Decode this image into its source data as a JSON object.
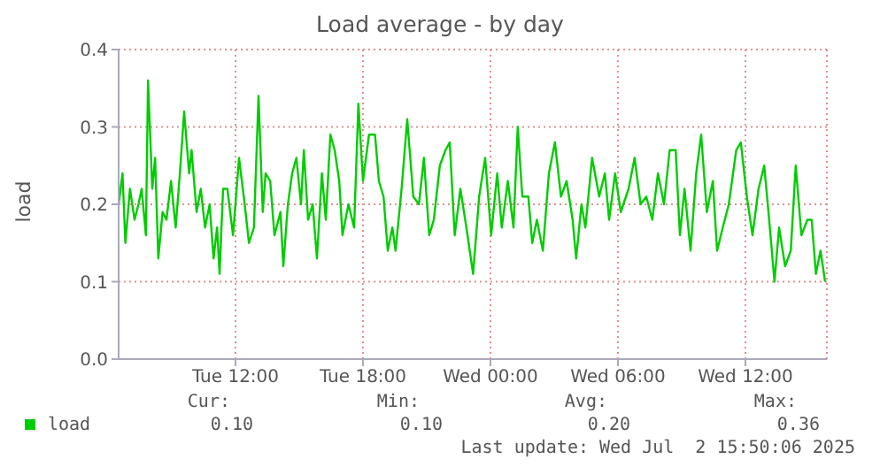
{
  "chart_data": {
    "type": "line",
    "title": "Load average - by day",
    "ylabel": "load",
    "xlim": [
      "2025-07-01T06:30",
      "2025-07-02T15:50"
    ],
    "xticks": [
      {
        "value": "2025-07-01T12:00",
        "label": "Tue 12:00"
      },
      {
        "value": "2025-07-01T18:00",
        "label": "Tue 18:00"
      },
      {
        "value": "2025-07-02T00:00",
        "label": "Wed 00:00"
      },
      {
        "value": "2025-07-02T06:00",
        "label": "Wed 06:00"
      },
      {
        "value": "2025-07-02T12:00",
        "label": "Wed 12:00"
      }
    ],
    "ylim": [
      0,
      0.4
    ],
    "yticks": [
      {
        "value": 0,
        "label": "0.0"
      },
      0.1,
      0.2,
      0.3,
      {
        "value": 0.4,
        "label": "0.4"
      }
    ],
    "grid": true,
    "legend": "bottom left",
    "marker": "none",
    "line_style": "solid",
    "x": [
      "2025-07-01T06:30",
      "2025-07-01T06:41",
      "2025-07-01T06:49",
      "2025-07-01T07:02",
      "2025-07-01T07:15",
      "2025-07-01T07:26",
      "2025-07-01T07:35",
      "2025-07-01T07:47",
      "2025-07-01T07:53",
      "2025-07-01T08:05",
      "2025-07-01T08:13",
      "2025-07-01T08:22",
      "2025-07-01T08:34",
      "2025-07-01T08:45",
      "2025-07-01T08:58",
      "2025-07-01T09:11",
      "2025-07-01T09:23",
      "2025-07-01T09:35",
      "2025-07-01T09:49",
      "2025-07-01T09:56",
      "2025-07-01T10:10",
      "2025-07-01T10:22",
      "2025-07-01T10:34",
      "2025-07-01T10:47",
      "2025-07-01T10:58",
      "2025-07-01T11:08",
      "2025-07-01T11:15",
      "2025-07-01T11:25",
      "2025-07-01T11:37",
      "2025-07-01T11:53",
      "2025-07-01T12:10",
      "2025-07-01T12:26",
      "2025-07-01T12:38",
      "2025-07-01T12:52",
      "2025-07-01T13:05",
      "2025-07-01T13:17",
      "2025-07-01T13:25",
      "2025-07-01T13:38",
      "2025-07-01T13:50",
      "2025-07-01T14:07",
      "2025-07-01T14:15",
      "2025-07-01T14:28",
      "2025-07-01T14:40",
      "2025-07-01T14:52",
      "2025-07-01T15:05",
      "2025-07-01T15:13",
      "2025-07-01T15:25",
      "2025-07-01T15:38",
      "2025-07-01T15:50",
      "2025-07-01T16:04",
      "2025-07-01T16:15",
      "2025-07-01T16:28",
      "2025-07-01T16:40",
      "2025-07-01T16:53",
      "2025-07-01T17:02",
      "2025-07-01T17:19",
      "2025-07-01T17:35",
      "2025-07-01T17:47",
      "2025-07-01T18:00",
      "2025-07-01T18:17",
      "2025-07-01T18:34",
      "2025-07-01T18:45",
      "2025-07-01T18:58",
      "2025-07-01T19:10",
      "2025-07-01T19:23",
      "2025-07-01T19:32",
      "2025-07-01T19:49",
      "2025-07-01T20:05",
      "2025-07-01T20:22",
      "2025-07-01T20:38",
      "2025-07-01T20:52",
      "2025-07-01T21:07",
      "2025-07-01T21:20",
      "2025-07-01T21:37",
      "2025-07-01T21:53",
      "2025-07-01T22:05",
      "2025-07-01T22:19",
      "2025-07-01T22:35",
      "2025-07-01T22:52",
      "2025-07-01T23:11",
      "2025-07-01T23:28",
      "2025-07-01T23:45",
      "2025-07-02T00:02",
      "2025-07-02T00:19",
      "2025-07-02T00:32",
      "2025-07-02T00:49",
      "2025-07-02T01:05",
      "2025-07-02T01:17",
      "2025-07-02T01:30",
      "2025-07-02T01:47",
      "2025-07-02T01:58",
      "2025-07-02T02:11",
      "2025-07-02T02:28",
      "2025-07-02T02:45",
      "2025-07-02T03:02",
      "2025-07-02T03:19",
      "2025-07-02T03:35",
      "2025-07-02T03:52",
      "2025-07-02T04:02",
      "2025-07-02T04:17",
      "2025-07-02T04:28",
      "2025-07-02T04:47",
      "2025-07-02T05:07",
      "2025-07-02T05:23",
      "2025-07-02T05:35",
      "2025-07-02T05:52",
      "2025-07-02T06:08",
      "2025-07-02T06:30",
      "2025-07-02T06:47",
      "2025-07-02T07:04",
      "2025-07-02T07:20",
      "2025-07-02T07:37",
      "2025-07-02T07:53",
      "2025-07-02T08:10",
      "2025-07-02T08:26",
      "2025-07-02T08:43",
      "2025-07-02T08:55",
      "2025-07-02T09:08",
      "2025-07-02T09:25",
      "2025-07-02T09:41",
      "2025-07-02T09:55",
      "2025-07-02T10:11",
      "2025-07-02T10:28",
      "2025-07-02T10:40",
      "2025-07-02T10:56",
      "2025-07-02T11:13",
      "2025-07-02T11:34",
      "2025-07-02T11:47",
      "2025-07-02T12:04",
      "2025-07-02T12:20",
      "2025-07-02T12:37",
      "2025-07-02T12:53",
      "2025-07-02T13:07",
      "2025-07-02T13:22",
      "2025-07-02T13:35",
      "2025-07-02T13:52",
      "2025-07-02T14:08",
      "2025-07-02T14:22",
      "2025-07-02T14:38",
      "2025-07-02T14:55",
      "2025-07-02T15:07",
      "2025-07-02T15:19",
      "2025-07-02T15:32",
      "2025-07-02T15:45"
    ],
    "series": [
      {
        "name": "load",
        "color": "#00cc00",
        "values": [
          0.2,
          0.24,
          0.15,
          0.22,
          0.18,
          0.2,
          0.22,
          0.16,
          0.36,
          0.22,
          0.26,
          0.13,
          0.19,
          0.18,
          0.23,
          0.17,
          0.24,
          0.32,
          0.24,
          0.27,
          0.19,
          0.22,
          0.17,
          0.2,
          0.13,
          0.17,
          0.11,
          0.22,
          0.22,
          0.16,
          0.26,
          0.2,
          0.15,
          0.17,
          0.34,
          0.19,
          0.24,
          0.23,
          0.16,
          0.19,
          0.12,
          0.2,
          0.24,
          0.26,
          0.2,
          0.27,
          0.18,
          0.2,
          0.13,
          0.24,
          0.18,
          0.29,
          0.27,
          0.23,
          0.16,
          0.2,
          0.17,
          0.33,
          0.23,
          0.29,
          0.29,
          0.23,
          0.21,
          0.14,
          0.17,
          0.14,
          0.22,
          0.31,
          0.21,
          0.2,
          0.26,
          0.16,
          0.18,
          0.25,
          0.27,
          0.28,
          0.16,
          0.22,
          0.17,
          0.11,
          0.21,
          0.26,
          0.16,
          0.24,
          0.17,
          0.23,
          0.17,
          0.3,
          0.21,
          0.21,
          0.15,
          0.18,
          0.14,
          0.24,
          0.28,
          0.21,
          0.23,
          0.18,
          0.13,
          0.2,
          0.17,
          0.26,
          0.21,
          0.24,
          0.18,
          0.24,
          0.19,
          0.22,
          0.26,
          0.2,
          0.21,
          0.18,
          0.24,
          0.2,
          0.27,
          0.27,
          0.16,
          0.22,
          0.14,
          0.24,
          0.29,
          0.19,
          0.23,
          0.14,
          0.17,
          0.2,
          0.27,
          0.28,
          0.21,
          0.16,
          0.22,
          0.25,
          0.18,
          0.1,
          0.17,
          0.12,
          0.14,
          0.25,
          0.16,
          0.18,
          0.18,
          0.11,
          0.14,
          0.1
        ]
      }
    ],
    "annotations": [
      "Cur:",
      "Min:",
      "Avg:",
      "Max:",
      "0.10",
      "0.10",
      "0.20",
      "0.36",
      "Last update: Wed Jul  2 15:50:06 2025"
    ]
  }
}
